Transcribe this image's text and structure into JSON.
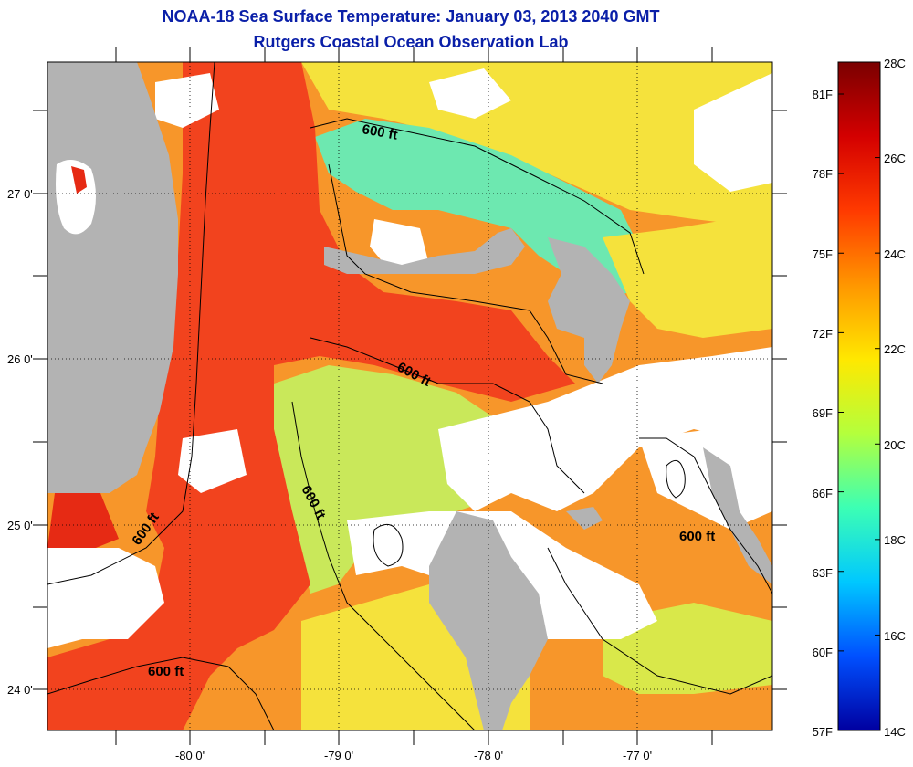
{
  "title_line1": "NOAA-18 Sea Surface Temperature:  January 03, 2013 2040 GMT",
  "title_line2": "Rutgers Coastal Ocean Observation Lab",
  "latitude_labels": [
    "27 0'",
    "26 0'",
    "25 0'",
    "24 0'"
  ],
  "longitude_labels": [
    "-80 0'",
    "-79 0'",
    "-78 0'",
    "-77 0'"
  ],
  "contour_labels": [
    "600 ft",
    "600 ft",
    "600 ft",
    "600 ft",
    "600 ft",
    "600 ft"
  ],
  "colorbar": {
    "celsius_labels": [
      "28C",
      "26C",
      "24C",
      "22C",
      "20C",
      "18C",
      "16C",
      "14C"
    ],
    "fahrenheit_labels": [
      "81F",
      "78F",
      "75F",
      "72F",
      "69F",
      "66F",
      "63F",
      "60F",
      "57F"
    ],
    "colors": [
      "#7a0000",
      "#d40000",
      "#ff3a00",
      "#ff9600",
      "#ffe800",
      "#b4ff3c",
      "#3cffb4",
      "#00c8ff",
      "#0050ff",
      "#0000a0"
    ]
  },
  "colors": {
    "land": "#b3b3b3",
    "cloud": "#ffffff",
    "gulf_stream": "#f2431e",
    "warm_orange": "#f7962a",
    "yellow": "#f5e23c",
    "green_yellow": "#c9e85a",
    "cyan_green": "#6de8b0",
    "title": "#0a1fa8"
  }
}
